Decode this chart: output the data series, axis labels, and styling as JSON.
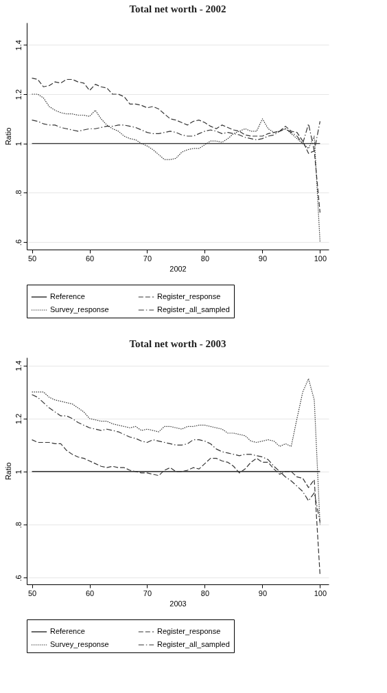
{
  "chart_data": [
    {
      "type": "line",
      "title": "Total net worth - 2002",
      "xlabel": "2002",
      "ylabel": "Ratio",
      "xlim": [
        49.1,
        101.5
      ],
      "xticks": [
        50,
        60,
        70,
        80,
        90,
        100
      ],
      "ylim": [
        0.57,
        1.49
      ],
      "yticks": [
        {
          "value": 0.6,
          "label": ".6"
        },
        {
          "value": 0.8,
          "label": ".8"
        },
        {
          "value": 1,
          "label": "1"
        },
        {
          "value": 1.2,
          "label": "1.2"
        },
        {
          "value": 1.4,
          "label": "1.4"
        }
      ],
      "grid": "y",
      "legend": "bottom",
      "x": [
        50,
        51,
        52,
        53,
        54,
        55,
        56,
        57,
        58,
        59,
        60,
        61,
        62,
        63,
        64,
        65,
        66,
        67,
        68,
        69,
        70,
        71,
        72,
        73,
        74,
        75,
        76,
        77,
        78,
        79,
        80,
        81,
        82,
        83,
        84,
        85,
        86,
        87,
        88,
        89,
        90,
        91,
        92,
        93,
        94,
        95,
        96,
        97,
        98,
        99,
        100
      ],
      "series": [
        {
          "name": "Reference",
          "color": "#000000",
          "line_style": "solid",
          "values": [
            1,
            1,
            1,
            1,
            1,
            1,
            1,
            1,
            1,
            1,
            1,
            1,
            1,
            1,
            1,
            1,
            1,
            1,
            1,
            1,
            1,
            1,
            1,
            1,
            1,
            1,
            1,
            1,
            1,
            1,
            1,
            1,
            1,
            1,
            1,
            1,
            1,
            1,
            1,
            1,
            1,
            1,
            1,
            1,
            1,
            1,
            1,
            1,
            1,
            1,
            1
          ]
        },
        {
          "name": "Register_response",
          "color": "#333333",
          "line_style": "dashed",
          "values": [
            1.265,
            1.26,
            1.23,
            1.235,
            1.25,
            1.245,
            1.26,
            1.26,
            1.25,
            1.245,
            1.215,
            1.24,
            1.23,
            1.225,
            1.2,
            1.2,
            1.19,
            1.16,
            1.16,
            1.155,
            1.145,
            1.15,
            1.14,
            1.12,
            1.1,
            1.095,
            1.085,
            1.075,
            1.09,
            1.095,
            1.085,
            1.07,
            1.06,
            1.075,
            1.065,
            1.055,
            1.05,
            1.035,
            1.03,
            1.03,
            1.03,
            1.04,
            1.045,
            1.05,
            1.07,
            1.05,
            1.045,
            1.01,
            0.96,
            0.97,
            0.72
          ]
        },
        {
          "name": "Survey_response",
          "color": "#333333",
          "line_style": "dotted",
          "values": [
            1.2,
            1.2,
            1.185,
            1.15,
            1.135,
            1.125,
            1.12,
            1.12,
            1.115,
            1.115,
            1.11,
            1.135,
            1.1,
            1.075,
            1.06,
            1.05,
            1.03,
            1.02,
            1.015,
            1.0,
            0.99,
            0.975,
            0.955,
            0.935,
            0.935,
            0.94,
            0.965,
            0.975,
            0.98,
            0.98,
            0.995,
            1.01,
            1.01,
            1.005,
            1.02,
            1.04,
            1.05,
            1.06,
            1.05,
            1.05,
            1.1,
            1.06,
            1.045,
            1.05,
            1.06,
            1.04,
            1.02,
            1.0,
            0.98,
            1.03,
            0.6
          ]
        },
        {
          "name": "Register_all_sampled",
          "color": "#333333",
          "line_style": "dashdot",
          "values": [
            1.095,
            1.09,
            1.08,
            1.075,
            1.075,
            1.065,
            1.06,
            1.055,
            1.05,
            1.055,
            1.06,
            1.06,
            1.065,
            1.07,
            1.07,
            1.075,
            1.075,
            1.07,
            1.065,
            1.055,
            1.045,
            1.04,
            1.04,
            1.045,
            1.05,
            1.045,
            1.035,
            1.03,
            1.03,
            1.04,
            1.05,
            1.055,
            1.05,
            1.04,
            1.045,
            1.04,
            1.035,
            1.025,
            1.02,
            1.015,
            1.02,
            1.03,
            1.035,
            1.05,
            1.06,
            1.045,
            1.03,
            1.0,
            1.08,
            0.97,
            1.09
          ]
        }
      ]
    },
    {
      "type": "line",
      "title": "Total net worth - 2003",
      "xlabel": "2003",
      "ylabel": "Ratio",
      "xlim": [
        49.1,
        101.5
      ],
      "xticks": [
        50,
        60,
        70,
        80,
        90,
        100
      ],
      "ylim": [
        0.575,
        1.43
      ],
      "yticks": [
        {
          "value": 0.6,
          "label": ".6"
        },
        {
          "value": 0.8,
          "label": ".8"
        },
        {
          "value": 1,
          "label": "1"
        },
        {
          "value": 1.2,
          "label": "1.2"
        },
        {
          "value": 1.4,
          "label": "1.4"
        }
      ],
      "grid": "y",
      "legend": "bottom",
      "x": [
        50,
        51,
        52,
        53,
        54,
        55,
        56,
        57,
        58,
        59,
        60,
        61,
        62,
        63,
        64,
        65,
        66,
        67,
        68,
        69,
        70,
        71,
        72,
        73,
        74,
        75,
        76,
        77,
        78,
        79,
        80,
        81,
        82,
        83,
        84,
        85,
        86,
        87,
        88,
        89,
        90,
        91,
        92,
        93,
        94,
        95,
        96,
        97,
        98,
        99,
        100
      ],
      "series": [
        {
          "name": "Reference",
          "color": "#000000",
          "line_style": "solid",
          "values": [
            1,
            1,
            1,
            1,
            1,
            1,
            1,
            1,
            1,
            1,
            1,
            1,
            1,
            1,
            1,
            1,
            1,
            1,
            1,
            1,
            1,
            1,
            1,
            1,
            1,
            1,
            1,
            1,
            1,
            1,
            1,
            1,
            1,
            1,
            1,
            1,
            1,
            1,
            1,
            1,
            1,
            1,
            1,
            1,
            1,
            1,
            1,
            1,
            1,
            1,
            1
          ]
        },
        {
          "name": "Register_response",
          "color": "#333333",
          "line_style": "dashed",
          "values": [
            1.12,
            1.11,
            1.11,
            1.11,
            1.105,
            1.105,
            1.08,
            1.065,
            1.055,
            1.05,
            1.04,
            1.03,
            1.02,
            1.015,
            1.02,
            1.015,
            1.015,
            1.005,
            1.0,
            0.995,
            0.995,
            0.99,
            0.985,
            1.005,
            1.015,
            1.0,
            1.0,
            1.005,
            1.015,
            1.01,
            1.03,
            1.05,
            1.05,
            1.04,
            1.035,
            1.02,
            0.995,
            1.01,
            1.035,
            1.05,
            1.035,
            1.035,
            1.01,
            0.99,
            1.0,
            1.0,
            0.98,
            0.975,
            0.94,
            0.97,
            0.61
          ]
        },
        {
          "name": "Survey_response",
          "color": "#333333",
          "line_style": "dotted",
          "values": [
            1.3,
            1.3,
            1.3,
            1.28,
            1.27,
            1.265,
            1.26,
            1.255,
            1.24,
            1.225,
            1.2,
            1.195,
            1.19,
            1.19,
            1.18,
            1.175,
            1.17,
            1.165,
            1.17,
            1.155,
            1.16,
            1.155,
            1.15,
            1.17,
            1.17,
            1.165,
            1.16,
            1.17,
            1.17,
            1.175,
            1.175,
            1.17,
            1.165,
            1.16,
            1.145,
            1.145,
            1.14,
            1.135,
            1.115,
            1.11,
            1.115,
            1.12,
            1.115,
            1.095,
            1.105,
            1.095,
            1.2,
            1.3,
            1.35,
            1.27,
            0.8
          ]
        },
        {
          "name": "Register_all_sampled",
          "color": "#333333",
          "line_style": "dashdot",
          "values": [
            1.29,
            1.28,
            1.26,
            1.24,
            1.225,
            1.21,
            1.21,
            1.2,
            1.185,
            1.175,
            1.165,
            1.16,
            1.155,
            1.16,
            1.155,
            1.15,
            1.14,
            1.13,
            1.125,
            1.115,
            1.11,
            1.12,
            1.115,
            1.11,
            1.105,
            1.1,
            1.1,
            1.105,
            1.12,
            1.12,
            1.115,
            1.105,
            1.085,
            1.075,
            1.07,
            1.065,
            1.06,
            1.065,
            1.065,
            1.06,
            1.055,
            1.045,
            1.02,
            1.0,
            0.98,
            0.965,
            0.945,
            0.925,
            0.89,
            0.92,
            0.81
          ]
        }
      ]
    }
  ]
}
